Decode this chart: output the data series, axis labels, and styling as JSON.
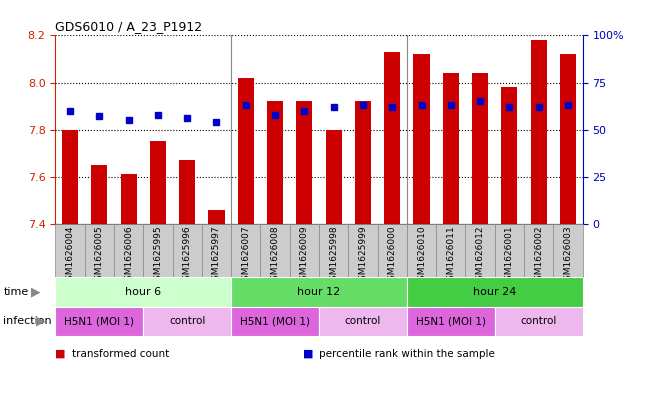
{
  "title": "GDS6010 / A_23_P1912",
  "samples": [
    "GSM1626004",
    "GSM1626005",
    "GSM1626006",
    "GSM1625995",
    "GSM1625996",
    "GSM1625997",
    "GSM1626007",
    "GSM1626008",
    "GSM1626009",
    "GSM1625998",
    "GSM1625999",
    "GSM1626000",
    "GSM1626010",
    "GSM1626011",
    "GSM1626012",
    "GSM1626001",
    "GSM1626002",
    "GSM1626003"
  ],
  "bar_values": [
    7.8,
    7.65,
    7.61,
    7.75,
    7.67,
    7.46,
    8.02,
    7.92,
    7.92,
    7.8,
    7.92,
    8.13,
    8.12,
    8.04,
    8.04,
    7.98,
    8.18,
    8.12
  ],
  "dot_values": [
    60,
    57,
    55,
    58,
    56,
    54,
    63,
    58,
    60,
    62,
    63,
    62,
    63,
    63,
    65,
    62,
    62,
    63
  ],
  "ylim": [
    7.4,
    8.2
  ],
  "y2lim": [
    0,
    100
  ],
  "yticks": [
    7.4,
    7.6,
    7.8,
    8.0,
    8.2
  ],
  "y2ticks": [
    0,
    25,
    50,
    75,
    100
  ],
  "y2tick_labels": [
    "0",
    "25",
    "50",
    "75",
    "100%"
  ],
  "bar_color": "#CC0000",
  "dot_color": "#0000CC",
  "groups_time": [
    {
      "label": "hour 6",
      "start": 0,
      "end": 6,
      "color": "#CCFFCC"
    },
    {
      "label": "hour 12",
      "start": 6,
      "end": 12,
      "color": "#66DD66"
    },
    {
      "label": "hour 24",
      "start": 12,
      "end": 18,
      "color": "#44CC44"
    }
  ],
  "groups_infection": [
    {
      "label": "H5N1 (MOI 1)",
      "start": 0,
      "end": 3,
      "color": "#DD66DD"
    },
    {
      "label": "control",
      "start": 3,
      "end": 6,
      "color": "#EEB8EE"
    },
    {
      "label": "H5N1 (MOI 1)",
      "start": 6,
      "end": 9,
      "color": "#DD66DD"
    },
    {
      "label": "control",
      "start": 9,
      "end": 12,
      "color": "#EEB8EE"
    },
    {
      "label": "H5N1 (MOI 1)",
      "start": 12,
      "end": 15,
      "color": "#DD66DD"
    },
    {
      "label": "control",
      "start": 15,
      "end": 18,
      "color": "#EEB8EE"
    }
  ],
  "legend_items": [
    {
      "label": "transformed count",
      "color": "#CC0000"
    },
    {
      "label": "percentile rank within the sample",
      "color": "#0000CC"
    }
  ],
  "tick_color_left": "#CC2200",
  "tick_color_right": "#0000BB",
  "sample_box_color": "#CCCCCC",
  "sample_box_edge": "#888888"
}
